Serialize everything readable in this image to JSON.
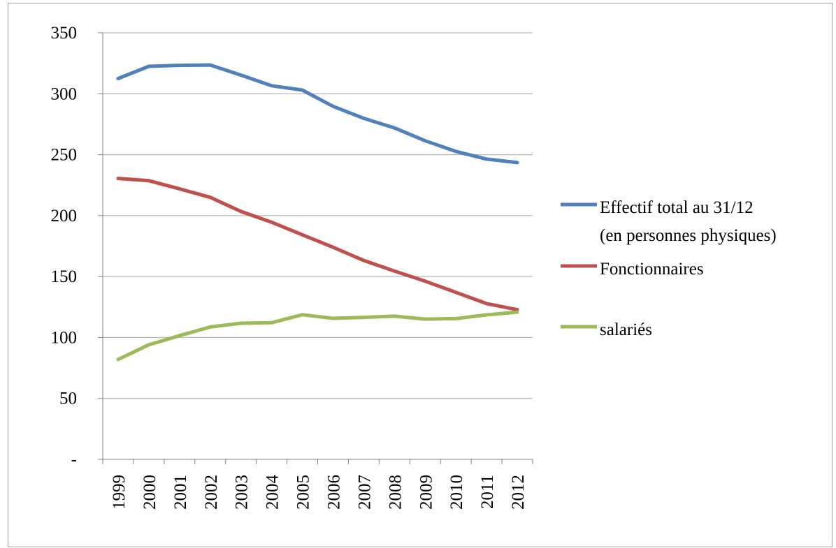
{
  "chart_data": {
    "type": "line",
    "title": "",
    "xlabel": "",
    "ylabel": "",
    "categories": [
      "1999",
      "2000",
      "2001",
      "2002",
      "2003",
      "2004",
      "2005",
      "2006",
      "2007",
      "2008",
      "2009",
      "2010",
      "2011",
      "2012"
    ],
    "ylim": [
      0,
      350
    ],
    "y_ticks": [
      0,
      50,
      100,
      150,
      200,
      250,
      300,
      350
    ],
    "y_tick_labels": [
      "-",
      "50",
      "100",
      "150",
      "200",
      "250",
      "300",
      "350"
    ],
    "grid": true,
    "legend_position": "right",
    "series": [
      {
        "name": "Effectif total au 31/12 (en personnes physiques)",
        "name_lines": [
          "Effectif total au 31/12",
          "(en personnes physiques)"
        ],
        "color": "#4f81bd",
        "values": [
          312.5,
          322.5,
          323.3,
          323.6,
          315.3,
          306.6,
          303.0,
          289.7,
          279.8,
          272.0,
          261.4,
          252.7,
          246.4,
          243.5
        ]
      },
      {
        "name": "Fonctionnaires",
        "name_lines": [
          "Fonctionnaires"
        ],
        "color": "#c0504d",
        "values": [
          230.5,
          228.7,
          222.0,
          215.0,
          203.4,
          194.6,
          184.3,
          174.0,
          163.2,
          154.5,
          146.2,
          137.0,
          127.8,
          122.8
        ]
      },
      {
        "name": "salariés",
        "name_lines": [
          "salariés"
        ],
        "color": "#9bbb59",
        "values": [
          82.0,
          94.0,
          101.5,
          108.6,
          111.7,
          112.1,
          118.7,
          115.7,
          116.5,
          117.5,
          115.1,
          115.5,
          118.6,
          120.8
        ]
      }
    ]
  }
}
